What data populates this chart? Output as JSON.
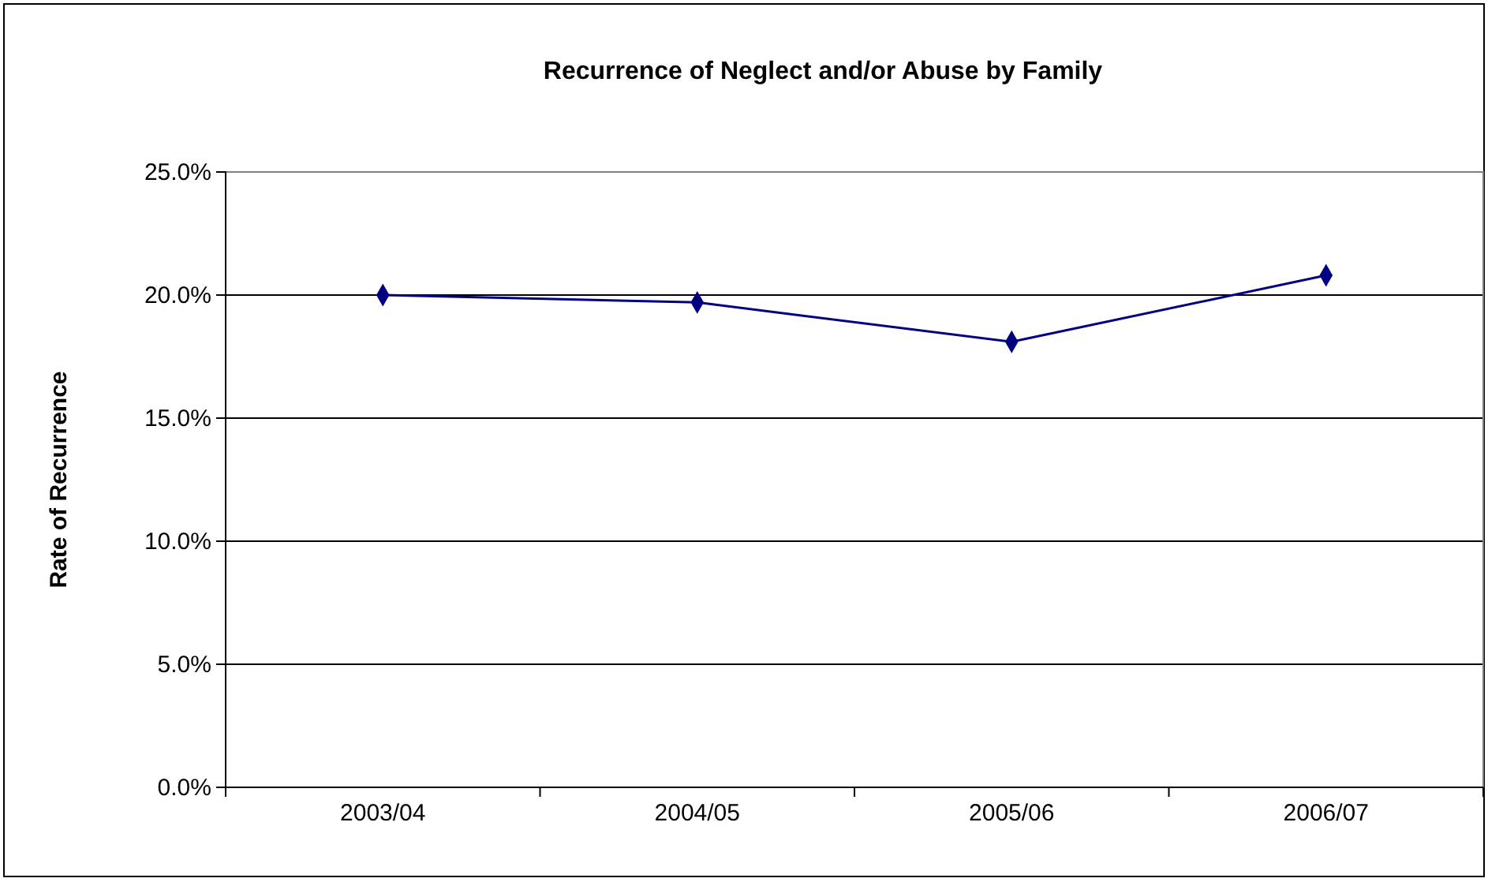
{
  "chart_data": {
    "type": "line",
    "title": "Recurrence of Neglect and/or Abuse by Family",
    "ylabel": "Rate of Recurrence",
    "categories": [
      "2003/04",
      "2004/05",
      "2005/06",
      "2006/07"
    ],
    "series": [
      {
        "color": "#000080",
        "values": [
          20.0,
          19.7,
          18.1,
          20.8
        ]
      }
    ],
    "ylim": [
      0,
      25
    ],
    "yticks": [
      {
        "value": 0,
        "label": "0.0%"
      },
      {
        "value": 5,
        "label": "5.0%"
      },
      {
        "value": 10,
        "label": "10.0%"
      },
      {
        "value": 15,
        "label": "15.0%"
      },
      {
        "value": 20,
        "label": "20.0%"
      },
      {
        "value": 25,
        "label": "25.0%"
      }
    ],
    "grid": "y",
    "marker": "diamond",
    "line_style": "solid"
  }
}
